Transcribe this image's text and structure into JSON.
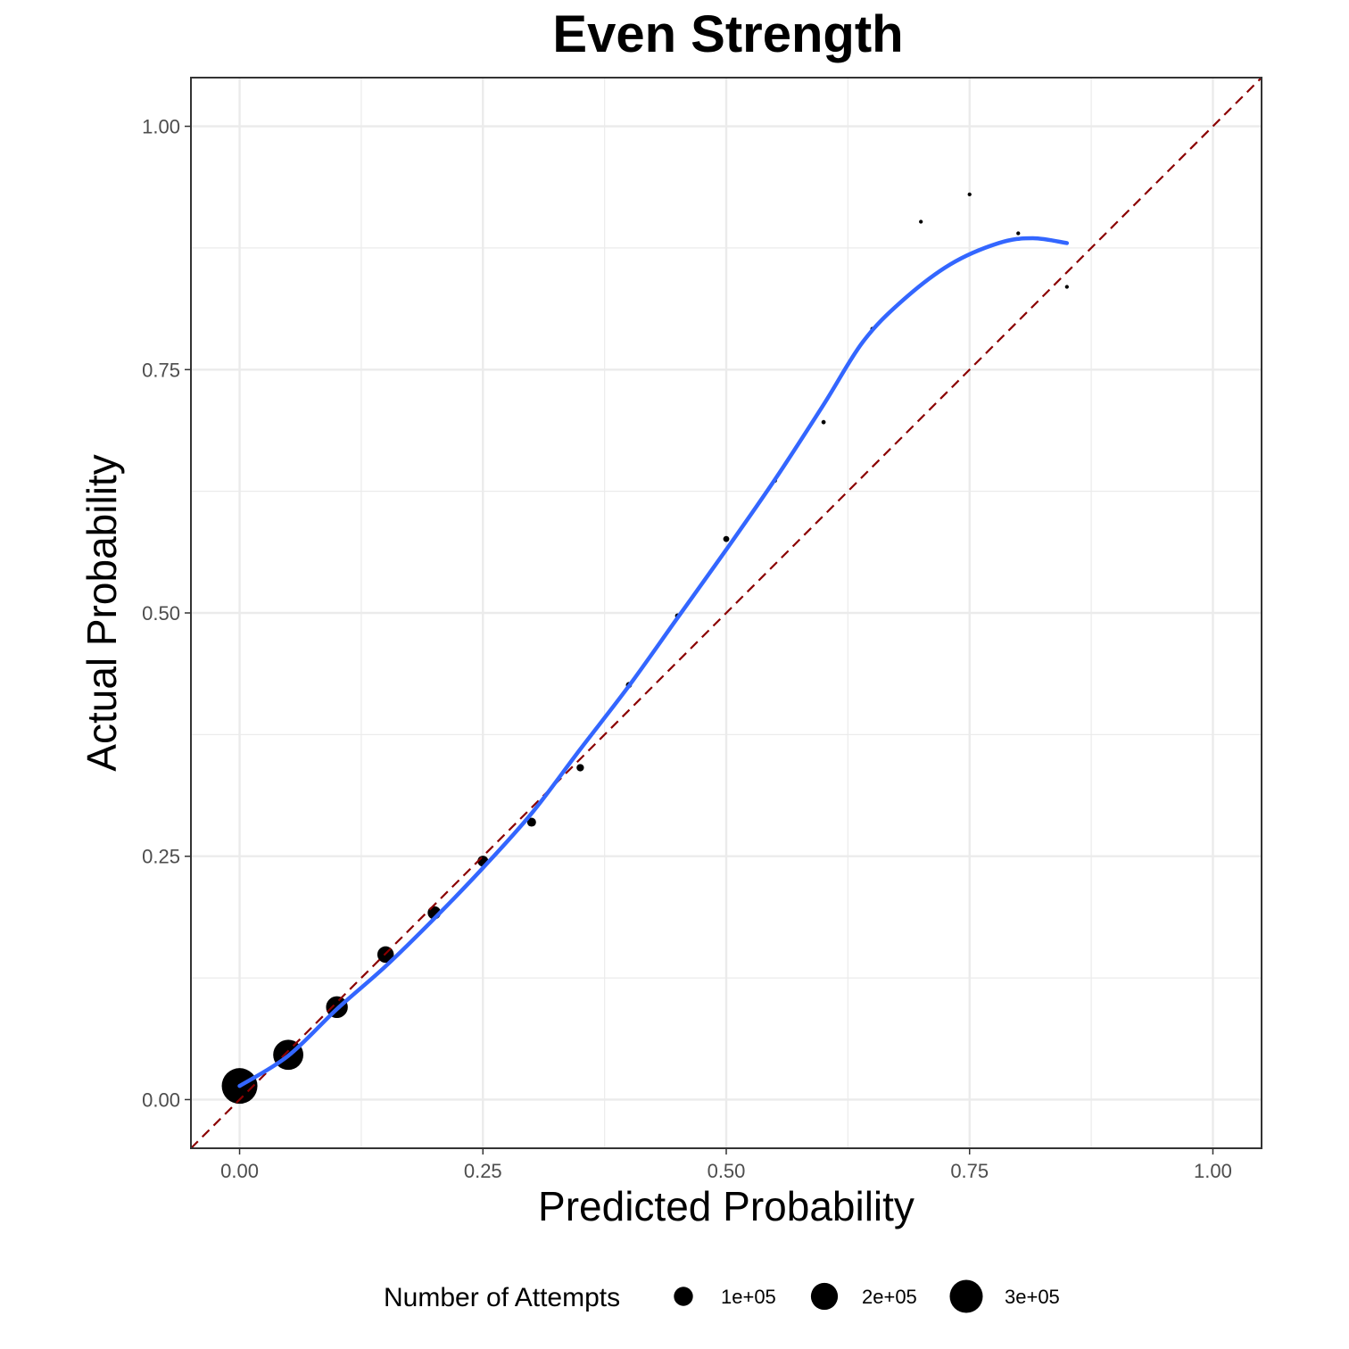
{
  "chart_data": {
    "type": "scatter",
    "title": "Even Strength",
    "xlabel": "Predicted Probability",
    "ylabel": "Actual Probability",
    "xlim": [
      -0.05,
      1.05
    ],
    "ylim": [
      -0.05,
      1.05
    ],
    "x_ticks": [
      "0.00",
      "0.25",
      "0.50",
      "0.75",
      "1.00"
    ],
    "y_ticks": [
      "0.00",
      "0.25",
      "0.50",
      "0.75",
      "1.00"
    ],
    "grid": true,
    "colors": {
      "points": "#000000",
      "smooth": "#3366ff",
      "reference": "#8b0000",
      "grid": "#ebebeb",
      "panel_border": "#333333"
    },
    "points": [
      {
        "x": 0.0,
        "y": 0.014,
        "n": 350000
      },
      {
        "x": 0.05,
        "y": 0.046,
        "n": 250000
      },
      {
        "x": 0.1,
        "y": 0.095,
        "n": 130000
      },
      {
        "x": 0.15,
        "y": 0.149,
        "n": 75000
      },
      {
        "x": 0.2,
        "y": 0.192,
        "n": 48000
      },
      {
        "x": 0.25,
        "y": 0.245,
        "n": 32000
      },
      {
        "x": 0.3,
        "y": 0.285,
        "n": 22000
      },
      {
        "x": 0.35,
        "y": 0.341,
        "n": 15000
      },
      {
        "x": 0.4,
        "y": 0.426,
        "n": 10000
      },
      {
        "x": 0.45,
        "y": 0.497,
        "n": 7000
      },
      {
        "x": 0.5,
        "y": 0.576,
        "n": 10000
      },
      {
        "x": 0.55,
        "y": 0.636,
        "n": 5000
      },
      {
        "x": 0.6,
        "y": 0.696,
        "n": 5000
      },
      {
        "x": 0.65,
        "y": 0.792,
        "n": 4000
      },
      {
        "x": 0.7,
        "y": 0.902,
        "n": 4000
      },
      {
        "x": 0.75,
        "y": 0.93,
        "n": 4000
      },
      {
        "x": 0.8,
        "y": 0.89,
        "n": 4000
      },
      {
        "x": 0.85,
        "y": 0.835,
        "n": 4000
      }
    ],
    "smooth_line": [
      {
        "x": 0.0,
        "y": 0.014
      },
      {
        "x": 0.05,
        "y": 0.045
      },
      {
        "x": 0.1,
        "y": 0.093
      },
      {
        "x": 0.15,
        "y": 0.137
      },
      {
        "x": 0.2,
        "y": 0.186
      },
      {
        "x": 0.25,
        "y": 0.238
      },
      {
        "x": 0.3,
        "y": 0.294
      },
      {
        "x": 0.35,
        "y": 0.36
      },
      {
        "x": 0.4,
        "y": 0.425
      },
      {
        "x": 0.45,
        "y": 0.495
      },
      {
        "x": 0.5,
        "y": 0.565
      },
      {
        "x": 0.55,
        "y": 0.637
      },
      {
        "x": 0.6,
        "y": 0.714
      },
      {
        "x": 0.64,
        "y": 0.778
      },
      {
        "x": 0.68,
        "y": 0.82
      },
      {
        "x": 0.73,
        "y": 0.858
      },
      {
        "x": 0.78,
        "y": 0.88
      },
      {
        "x": 0.815,
        "y": 0.885
      },
      {
        "x": 0.85,
        "y": 0.88
      }
    ],
    "reference_line": {
      "slope": 1,
      "intercept": 0
    },
    "legend": {
      "title": "Number of Attempts",
      "position": "bottom",
      "entries": [
        {
          "label": "1e+05",
          "n": 100000
        },
        {
          "label": "2e+05",
          "n": 200000
        },
        {
          "label": "3e+05",
          "n": 300000
        }
      ]
    }
  }
}
